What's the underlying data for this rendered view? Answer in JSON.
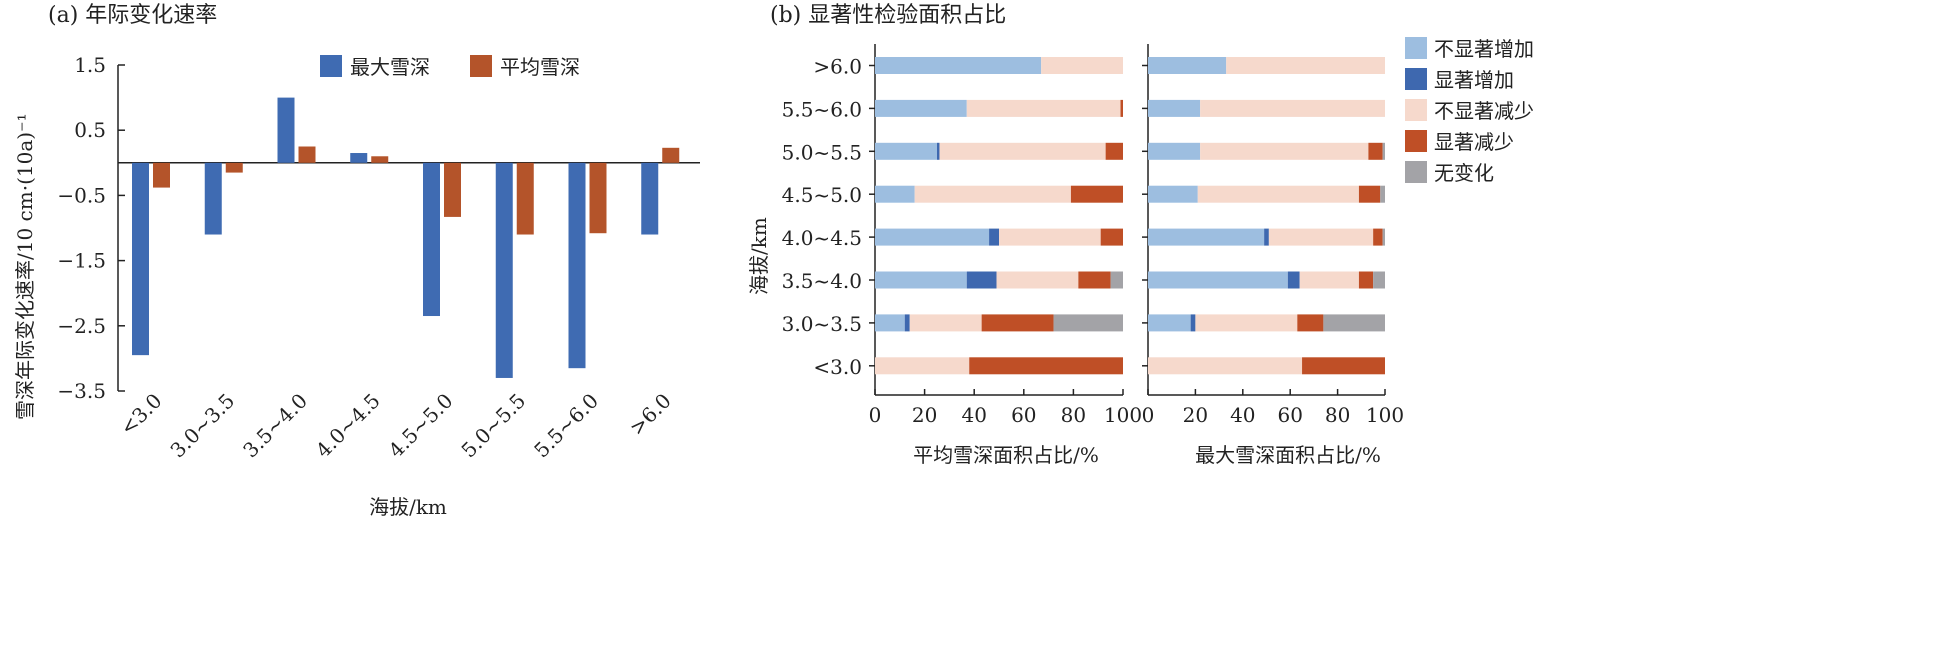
{
  "panel_a": {
    "title": "(a) 年际变化速率",
    "ylabel": "雪深年际变化速率/10 cm·(10a)⁻¹",
    "xlabel": "海拔/km",
    "legend": [
      "最大雪深",
      "平均雪深"
    ]
  },
  "panel_b": {
    "title": "(b) 显著性检验面积占比",
    "ylabel": "海拔/km",
    "left_xlabel": "平均雪深面积占比/%",
    "right_xlabel": "最大雪深面积占比/%",
    "legend": [
      "不显著增加",
      "显著增加",
      "不显著减少",
      "显著减少",
      "无变化"
    ]
  },
  "colors": {
    "max_depth": "#3F6BB2",
    "mean_depth": "#B4542A",
    "nonsig_inc": "#9DBEE0",
    "sig_inc": "#3E68AF",
    "nonsig_dec": "#F6D9CC",
    "sig_dec": "#BF4F26",
    "no_change": "#A3A3A7"
  },
  "chart_data": [
    {
      "type": "bar",
      "title": "(a) 年际变化速率",
      "xlabel": "海拔/km",
      "ylabel": "雪深年际变化速率/10 cm·(10a)⁻¹",
      "categories": [
        "<3.0",
        "3.0~3.5",
        "3.5~4.0",
        "4.0~4.5",
        "4.5~5.0",
        "5.0~5.5",
        "5.5~6.0",
        ">6.0"
      ],
      "series": [
        {
          "name": "最大雪深",
          "values": [
            -2.95,
            -1.1,
            1.0,
            0.15,
            -2.35,
            -3.3,
            -3.15,
            -1.1
          ]
        },
        {
          "name": "平均雪深",
          "values": [
            -0.38,
            -0.15,
            0.25,
            0.1,
            -0.83,
            -1.1,
            -1.08,
            0.23
          ]
        }
      ],
      "ylim": [
        -3.5,
        1.5
      ],
      "yticks": [
        1.5,
        0.5,
        -0.5,
        -1.5,
        -2.5,
        -3.5
      ],
      "ytick_labels": [
        "1.5",
        "0.5",
        "−0.5",
        "−1.5",
        "−2.5",
        "−3.5"
      ]
    },
    {
      "type": "bar",
      "orientation": "horizontal",
      "stacked": true,
      "title": "(b) 显著性检验面积占比",
      "xlabel": "平均雪深面积占比/%",
      "ylabel": "海拔/km",
      "categories": [
        ">6.0",
        "5.5~6.0",
        "5.0~5.5",
        "4.5~5.0",
        "4.0~4.5",
        "3.5~4.0",
        "3.0~3.5",
        "<3.0"
      ],
      "series": [
        {
          "name": "不显著增加",
          "values": [
            67,
            37,
            25,
            16,
            46,
            37,
            12,
            0
          ]
        },
        {
          "name": "显著增加",
          "values": [
            0,
            0,
            1,
            0,
            4,
            12,
            2,
            0
          ]
        },
        {
          "name": "不显著减少",
          "values": [
            33,
            62,
            67,
            63,
            41,
            33,
            29,
            38
          ]
        },
        {
          "name": "显著减少",
          "values": [
            0,
            1,
            7,
            21,
            9,
            13,
            29,
            62
          ]
        },
        {
          "name": "无变化",
          "values": [
            0,
            0,
            0,
            0,
            0,
            5,
            28,
            0
          ]
        }
      ],
      "xlim": [
        0,
        100
      ],
      "xticks": [
        0,
        20,
        40,
        60,
        80,
        100
      ]
    },
    {
      "type": "bar",
      "orientation": "horizontal",
      "stacked": true,
      "xlabel": "最大雪深面积占比/%",
      "categories": [
        ">6.0",
        "5.5~6.0",
        "5.0~5.5",
        "4.5~5.0",
        "4.0~4.5",
        "3.5~4.0",
        "3.0~3.5",
        "<3.0"
      ],
      "series": [
        {
          "name": "不显著增加",
          "values": [
            33,
            22,
            22,
            21,
            49,
            59,
            18,
            0
          ]
        },
        {
          "name": "显著增加",
          "values": [
            0,
            0,
            0,
            0,
            2,
            5,
            2,
            0
          ]
        },
        {
          "name": "不显著减少",
          "values": [
            67,
            78,
            71,
            68,
            44,
            25,
            43,
            65
          ]
        },
        {
          "name": "显著减少",
          "values": [
            0,
            0,
            6,
            9,
            4,
            6,
            11,
            35
          ]
        },
        {
          "name": "无变化",
          "values": [
            0,
            0,
            1,
            2,
            1,
            5,
            26,
            0
          ]
        }
      ],
      "xlim": [
        0,
        100
      ],
      "xticks": [
        0,
        20,
        40,
        60,
        80,
        100
      ]
    }
  ]
}
